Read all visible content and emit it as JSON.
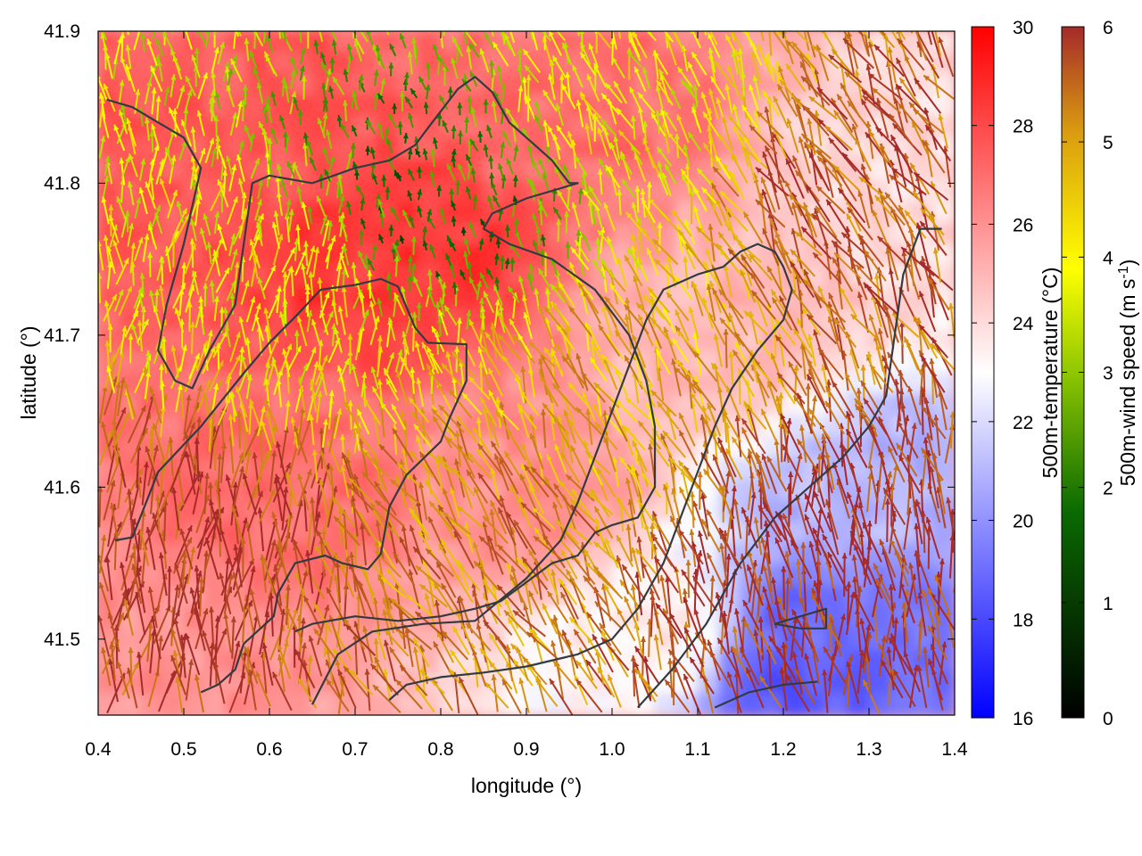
{
  "chart_data": {
    "type": "heatmap",
    "title": "",
    "xlabel": "longitude (°)",
    "ylabel": "latitude (°)",
    "xlim": [
      0.4,
      1.4
    ],
    "ylim": [
      41.45,
      41.9
    ],
    "x_ticks": [
      "0.4",
      "0.5",
      "0.6",
      "0.7",
      "0.8",
      "0.9",
      "1.0",
      "1.1",
      "1.2",
      "1.3",
      "1.4"
    ],
    "x_tick_values": [
      0.4,
      0.5,
      0.6,
      0.7,
      0.8,
      0.9,
      1.0,
      1.1,
      1.2,
      1.3,
      1.4
    ],
    "y_ticks": [
      "41.5",
      "41.6",
      "41.7",
      "41.8",
      "41.9"
    ],
    "y_tick_values": [
      41.5,
      41.6,
      41.7,
      41.8,
      41.9
    ],
    "colorbar_temperature": {
      "label": "500m-temperature (°C)",
      "range": [
        16,
        30
      ],
      "ticks": [
        "16",
        "18",
        "20",
        "22",
        "24",
        "26",
        "28",
        "30"
      ],
      "tick_values": [
        16,
        18,
        20,
        22,
        24,
        26,
        28,
        30
      ],
      "colors": [
        "#0000ff",
        "#ffffff",
        "#ff0000"
      ]
    },
    "colorbar_wind": {
      "label_main": "500m-wind speed (m s",
      "label_sup": "-1",
      "label_close": ")",
      "range": [
        0,
        6
      ],
      "ticks": [
        "0",
        "1",
        "2",
        "3",
        "4",
        "5",
        "6"
      ],
      "tick_values": [
        0,
        1,
        2,
        3,
        4,
        5,
        6
      ],
      "colors": [
        "#000000",
        "#0a6b00",
        "#8fc700",
        "#ffff00",
        "#d99a10",
        "#a52a2a"
      ]
    },
    "temperature_field": {
      "description_points": [
        {
          "lon": 0.75,
          "lat": 41.75,
          "temp": 28.5
        },
        {
          "lon": 0.55,
          "lat": 41.85,
          "temp": 27.5
        },
        {
          "lon": 0.95,
          "lat": 41.85,
          "temp": 27.0
        },
        {
          "lon": 0.6,
          "lat": 41.6,
          "temp": 27.0
        },
        {
          "lon": 0.9,
          "lat": 41.6,
          "temp": 26.0
        },
        {
          "lon": 1.15,
          "lat": 41.7,
          "temp": 25.0
        },
        {
          "lon": 1.25,
          "lat": 41.5,
          "temp": 19.0
        },
        {
          "lon": 1.3,
          "lat": 41.6,
          "temp": 21.0
        },
        {
          "lon": 1.35,
          "lat": 41.8,
          "temp": 24.0
        },
        {
          "lon": 0.45,
          "lat": 41.5,
          "temp": 26.0
        },
        {
          "lon": 1.05,
          "lat": 41.5,
          "temp": 23.5
        },
        {
          "lon": 1.2,
          "lat": 41.47,
          "temp": 18.5
        }
      ]
    },
    "wind_field": {
      "regions": [
        {
          "lon": 0.8,
          "lat": 41.78,
          "speed": 1.5,
          "dir_deg": 100
        },
        {
          "lon": 0.6,
          "lat": 41.72,
          "speed": 3.5,
          "dir_deg": 85
        },
        {
          "lon": 0.5,
          "lat": 41.55,
          "speed": 5.8,
          "dir_deg": 85
        },
        {
          "lon": 0.85,
          "lat": 41.55,
          "speed": 5.0,
          "dir_deg": 120
        },
        {
          "lon": 1.0,
          "lat": 41.65,
          "speed": 4.5,
          "dir_deg": 115
        },
        {
          "lon": 1.25,
          "lat": 41.55,
          "speed": 6.0,
          "dir_deg": 100
        },
        {
          "lon": 1.3,
          "lat": 41.8,
          "speed": 5.5,
          "dir_deg": 120
        },
        {
          "lon": 1.05,
          "lat": 41.85,
          "speed": 3.5,
          "dir_deg": 110
        }
      ]
    },
    "contours": [
      [
        [
          0.42,
          41.565
        ],
        [
          0.44,
          41.567
        ],
        [
          0.47,
          41.61
        ],
        [
          0.52,
          41.64
        ],
        [
          0.57,
          41.675
        ],
        [
          0.6,
          41.695
        ],
        [
          0.63,
          41.712
        ],
        [
          0.66,
          41.73
        ],
        [
          0.7,
          41.733
        ],
        [
          0.73,
          41.737
        ],
        [
          0.75,
          41.732
        ],
        [
          0.77,
          41.705
        ],
        [
          0.785,
          41.695
        ],
        [
          0.83,
          41.694
        ],
        [
          0.83,
          41.67
        ],
        [
          0.81,
          41.645
        ],
        [
          0.8,
          41.63
        ],
        [
          0.76,
          41.608
        ],
        [
          0.74,
          41.587
        ],
        [
          0.73,
          41.556
        ],
        [
          0.715,
          41.546
        ],
        [
          0.685,
          41.55
        ],
        [
          0.665,
          41.555
        ],
        [
          0.63,
          41.55
        ],
        [
          0.61,
          41.53
        ],
        [
          0.605,
          41.515
        ],
        [
          0.57,
          41.497
        ],
        [
          0.56,
          41.48
        ],
        [
          0.54,
          41.47
        ],
        [
          0.52,
          41.465
        ]
      ],
      [
        [
          0.41,
          41.855
        ],
        [
          0.44,
          41.85
        ],
        [
          0.47,
          41.84
        ],
        [
          0.5,
          41.83
        ],
        [
          0.52,
          41.81
        ],
        [
          0.5,
          41.76
        ],
        [
          0.48,
          41.72
        ],
        [
          0.47,
          41.69
        ],
        [
          0.49,
          41.67
        ],
        [
          0.51,
          41.665
        ],
        [
          0.53,
          41.69
        ],
        [
          0.56,
          41.72
        ],
        [
          0.57,
          41.76
        ],
        [
          0.58,
          41.8
        ],
        [
          0.6,
          41.805
        ],
        [
          0.65,
          41.8
        ],
        [
          0.7,
          41.81
        ],
        [
          0.74,
          41.815
        ],
        [
          0.77,
          41.825
        ],
        [
          0.79,
          41.84
        ],
        [
          0.82,
          41.862
        ],
        [
          0.84,
          41.87
        ],
        [
          0.86,
          41.86
        ],
        [
          0.88,
          41.84
        ],
        [
          0.9,
          41.83
        ],
        [
          0.93,
          41.815
        ],
        [
          0.95,
          41.8
        ],
        [
          0.96,
          41.8
        ],
        [
          0.9,
          41.79
        ],
        [
          0.86,
          41.78
        ],
        [
          0.85,
          41.77
        ],
        [
          0.88,
          41.76
        ],
        [
          0.93,
          41.75
        ],
        [
          0.98,
          41.73
        ],
        [
          1.02,
          41.7
        ],
        [
          1.04,
          41.67
        ],
        [
          1.05,
          41.64
        ],
        [
          1.05,
          41.6
        ],
        [
          1.03,
          41.58
        ],
        [
          1.0,
          41.575
        ],
        [
          0.98,
          41.57
        ],
        [
          0.96,
          41.555
        ],
        [
          0.93,
          41.55
        ],
        [
          0.87,
          41.525
        ],
        [
          0.84,
          41.52
        ],
        [
          0.8,
          41.515
        ],
        [
          0.75,
          41.512
        ],
        [
          0.7,
          41.515
        ],
        [
          0.65,
          41.51
        ],
        [
          0.63,
          41.505
        ]
      ],
      [
        [
          0.65,
          41.457
        ],
        [
          0.68,
          41.49
        ],
        [
          0.72,
          41.505
        ],
        [
          0.78,
          41.51
        ],
        [
          0.84,
          41.512
        ],
        [
          0.9,
          41.54
        ],
        [
          0.94,
          41.565
        ],
        [
          0.96,
          41.59
        ],
        [
          0.98,
          41.62
        ],
        [
          1.0,
          41.65
        ],
        [
          1.02,
          41.68
        ],
        [
          1.04,
          41.71
        ],
        [
          1.06,
          41.73
        ],
        [
          1.08,
          41.735
        ],
        [
          1.1,
          41.74
        ],
        [
          1.13,
          41.745
        ],
        [
          1.15,
          41.755
        ],
        [
          1.17,
          41.76
        ],
        [
          1.19,
          41.755
        ],
        [
          1.2,
          41.745
        ],
        [
          1.21,
          41.73
        ],
        [
          1.2,
          41.71
        ],
        [
          1.17,
          41.69
        ],
        [
          1.14,
          41.665
        ],
        [
          1.12,
          41.64
        ],
        [
          1.1,
          41.61
        ],
        [
          1.08,
          41.58
        ],
        [
          1.06,
          41.55
        ],
        [
          1.03,
          41.52
        ],
        [
          1.0,
          41.5
        ],
        [
          0.96,
          41.49
        ],
        [
          0.9,
          41.482
        ],
        [
          0.85,
          41.478
        ],
        [
          0.8,
          41.475
        ],
        [
          0.76,
          41.47
        ],
        [
          0.74,
          41.46
        ]
      ],
      [
        [
          1.03,
          41.455
        ],
        [
          1.07,
          41.48
        ],
        [
          1.11,
          41.51
        ],
        [
          1.15,
          41.55
        ],
        [
          1.19,
          41.58
        ],
        [
          1.23,
          41.6
        ],
        [
          1.27,
          41.62
        ],
        [
          1.3,
          41.64
        ],
        [
          1.32,
          41.66
        ],
        [
          1.33,
          41.7
        ],
        [
          1.34,
          41.74
        ],
        [
          1.36,
          41.77
        ],
        [
          1.385,
          41.77
        ]
      ],
      [
        [
          1.19,
          41.51
        ],
        [
          1.22,
          41.515
        ],
        [
          1.25,
          41.52
        ],
        [
          1.25,
          41.507
        ],
        [
          1.22,
          41.507
        ],
        [
          1.19,
          41.51
        ]
      ],
      [
        [
          1.12,
          41.455
        ],
        [
          1.16,
          41.465
        ],
        [
          1.2,
          41.47
        ],
        [
          1.24,
          41.472
        ]
      ]
    ]
  }
}
